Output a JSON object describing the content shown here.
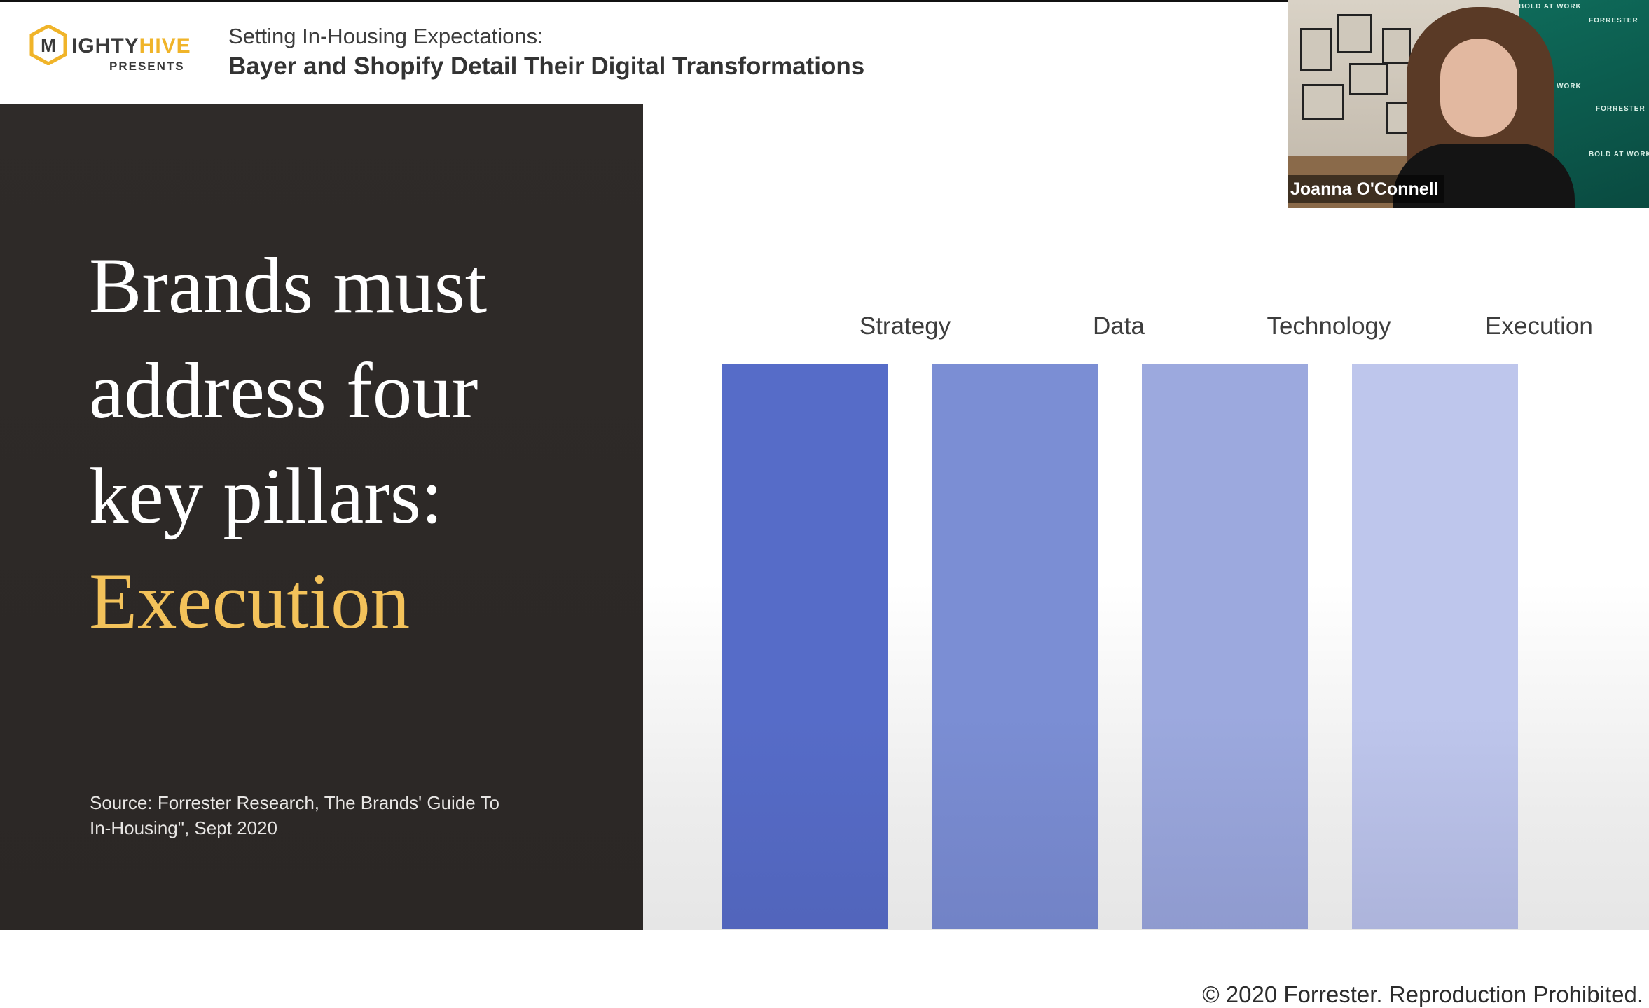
{
  "header": {
    "logo_word_left": "IGHTY",
    "logo_word_right": "HIVE",
    "logo_subtitle": "PRESENTS",
    "subtitle": "Setting In-Housing Expectations:",
    "title": "Bayer and Shopify Detail Their Digital Transformations"
  },
  "slide": {
    "headline_lines": [
      "Brands must",
      "address four",
      "key pillars:"
    ],
    "headline_accent": "Execution",
    "source_lines": [
      "Source: Forrester Research, The Brands' Guide To",
      "In-Housing\", Sept 2020"
    ],
    "copyright": "© 2020 Forrester. Reproduction Prohibited."
  },
  "pillars": [
    {
      "label": "Strategy",
      "color": "#566cc8"
    },
    {
      "label": "Data",
      "color": "#7b8ed4"
    },
    {
      "label": "Technology",
      "color": "#9ca9de"
    },
    {
      "label": "Execution",
      "color": "#bec6ec"
    }
  ],
  "video": {
    "participant_name": "Joanna O'Connell",
    "banner_texts": [
      "BOLD AT WORK",
      "FORRESTER",
      "BOLD AT WORK",
      "FORRESTER",
      "BOLD AT WORK"
    ]
  },
  "colors": {
    "accent": "#f3c25a",
    "dark_panel": "#2d2927",
    "brand_hive": "#f0b429"
  }
}
